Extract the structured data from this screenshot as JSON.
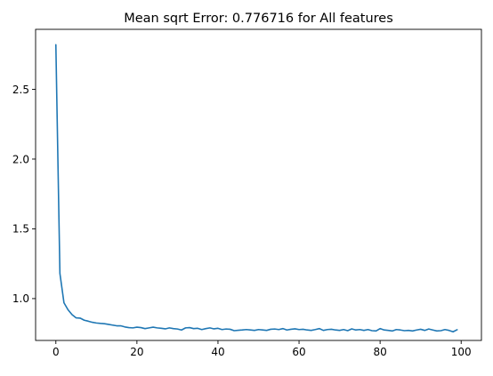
{
  "chart_data": {
    "type": "line",
    "title": "Mean sqrt Error: 0.776716 for All features",
    "xlabel": "",
    "ylabel": "",
    "xlim": [
      -5,
      105
    ],
    "ylim": [
      0.7,
      2.93
    ],
    "xticks": [
      0,
      20,
      40,
      60,
      80,
      100
    ],
    "xtick_labels": [
      "0",
      "20",
      "40",
      "60",
      "80",
      "100"
    ],
    "yticks": [
      1.0,
      1.5,
      2.0,
      2.5
    ],
    "ytick_labels": [
      "1.0",
      "1.5",
      "2.0",
      "2.5"
    ],
    "grid": false,
    "legend": "none",
    "series": [
      {
        "color": "#1f77b4",
        "x": [
          0,
          1,
          2,
          3,
          4,
          5,
          6,
          7,
          8,
          9,
          10,
          11,
          12,
          13,
          14,
          15,
          16,
          17,
          18,
          19,
          20,
          21,
          22,
          23,
          24,
          25,
          26,
          27,
          28,
          29,
          30,
          31,
          32,
          33,
          34,
          35,
          36,
          37,
          38,
          39,
          40,
          41,
          42,
          43,
          44,
          45,
          46,
          47,
          48,
          49,
          50,
          51,
          52,
          53,
          54,
          55,
          56,
          57,
          58,
          59,
          60,
          61,
          62,
          63,
          64,
          65,
          66,
          67,
          68,
          69,
          70,
          71,
          72,
          73,
          74,
          75,
          76,
          77,
          78,
          79,
          80,
          81,
          82,
          83,
          84,
          85,
          86,
          87,
          88,
          89,
          90,
          91,
          92,
          93,
          94,
          95,
          96,
          97,
          98,
          99
        ],
        "y": [
          2.82,
          1.18,
          0.97,
          0.92,
          0.885,
          0.862,
          0.86,
          0.845,
          0.838,
          0.83,
          0.825,
          0.822,
          0.82,
          0.815,
          0.81,
          0.805,
          0.805,
          0.797,
          0.792,
          0.79,
          0.795,
          0.792,
          0.785,
          0.79,
          0.795,
          0.79,
          0.787,
          0.783,
          0.79,
          0.785,
          0.782,
          0.775,
          0.79,
          0.792,
          0.785,
          0.787,
          0.778,
          0.785,
          0.79,
          0.783,
          0.787,
          0.778,
          0.782,
          0.78,
          0.77,
          0.773,
          0.775,
          0.778,
          0.775,
          0.772,
          0.778,
          0.775,
          0.772,
          0.78,
          0.782,
          0.778,
          0.785,
          0.775,
          0.78,
          0.783,
          0.778,
          0.78,
          0.775,
          0.772,
          0.778,
          0.785,
          0.772,
          0.778,
          0.78,
          0.775,
          0.772,
          0.778,
          0.77,
          0.783,
          0.775,
          0.778,
          0.772,
          0.778,
          0.77,
          0.768,
          0.785,
          0.775,
          0.772,
          0.768,
          0.778,
          0.775,
          0.77,
          0.772,
          0.768,
          0.775,
          0.78,
          0.772,
          0.782,
          0.775,
          0.768,
          0.77,
          0.778,
          0.772,
          0.762,
          0.777
        ]
      }
    ]
  }
}
